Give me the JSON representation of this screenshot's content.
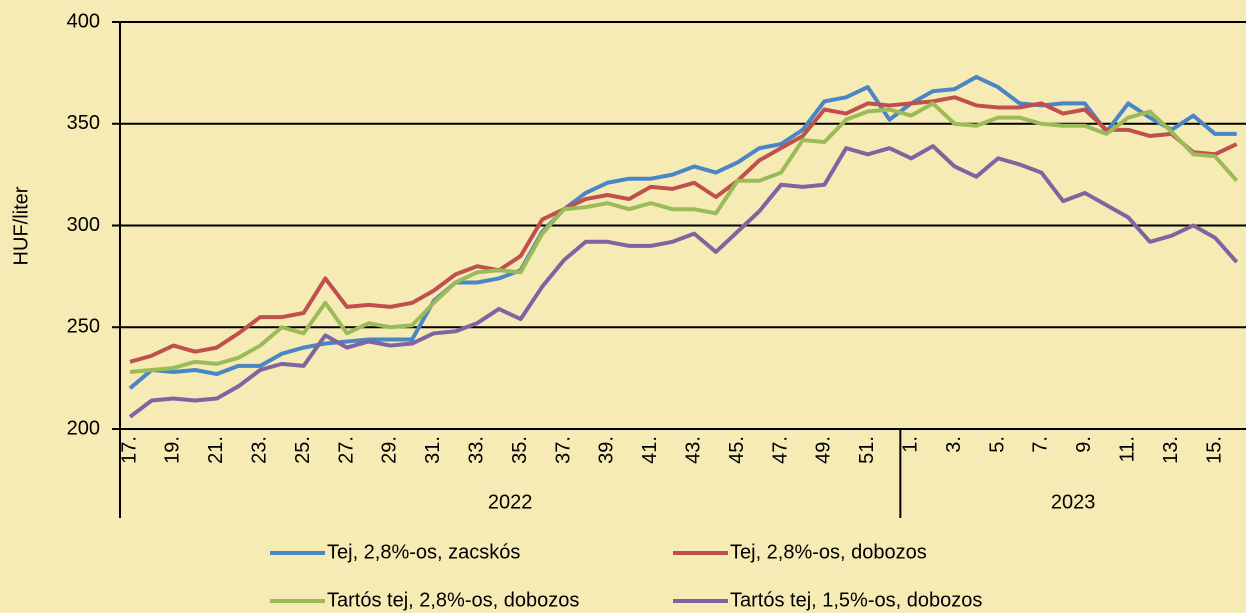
{
  "chart_data": {
    "type": "line",
    "y_label": "HUF/liter",
    "categories": [
      "17.",
      null,
      "19.",
      null,
      "21.",
      null,
      "23.",
      null,
      "25.",
      null,
      "27.",
      null,
      "29.",
      null,
      "31.",
      null,
      "33.",
      null,
      "35.",
      null,
      "37.",
      null,
      "39.",
      null,
      "41.",
      null,
      "43.",
      null,
      "45.",
      null,
      "47.",
      null,
      "49.",
      null,
      "51.",
      null,
      "1.",
      null,
      "3.",
      null,
      "5.",
      null,
      "7.",
      null,
      "9.",
      null,
      "11.",
      null,
      "13.",
      null,
      "15.",
      null
    ],
    "groups": [
      "2022",
      "2023"
    ],
    "ylim": [
      200,
      400
    ],
    "yticks": [
      200,
      250,
      300,
      350,
      400
    ],
    "grid": true,
    "series": [
      {
        "name": "Tej, 2,8%-os, zacskós",
        "color": "#4a86c5",
        "values": [
          220,
          229,
          228,
          229,
          227,
          231,
          231,
          237,
          240,
          242,
          243,
          244,
          244,
          244,
          263,
          272,
          272,
          274,
          278,
          297,
          308,
          316,
          321,
          323,
          323,
          325,
          329,
          326,
          331,
          338,
          340,
          347,
          361,
          363,
          368,
          352,
          360,
          366,
          367,
          373,
          368,
          360,
          359,
          360,
          360,
          346,
          360,
          353,
          347,
          354,
          345,
          345
        ]
      },
      {
        "name": "Tej, 2,8%-os, dobozos",
        "color": "#c0504d",
        "values": [
          233,
          236,
          241,
          238,
          240,
          247,
          255,
          255,
          257,
          274,
          260,
          261,
          260,
          262,
          268,
          276,
          280,
          278,
          285,
          303,
          308,
          313,
          315,
          313,
          319,
          318,
          321,
          314,
          322,
          332,
          338,
          344,
          357,
          355,
          360,
          359,
          360,
          361,
          363,
          359,
          358,
          358,
          360,
          355,
          357,
          347,
          347,
          344,
          345,
          336,
          335,
          340
        ]
      },
      {
        "name": "Tartós tej, 2,8%-os, dobozos",
        "color": "#9bbb59",
        "values": [
          228,
          229,
          230,
          233,
          232,
          235,
          241,
          250,
          247,
          262,
          247,
          252,
          250,
          251,
          262,
          272,
          277,
          278,
          277,
          296,
          308,
          309,
          311,
          308,
          311,
          308,
          308,
          306,
          322,
          322,
          326,
          342,
          341,
          352,
          356,
          357,
          354,
          360,
          350,
          349,
          353,
          353,
          350,
          349,
          349,
          345,
          353,
          356,
          346,
          335,
          334,
          322
        ]
      },
      {
        "name": "Tartós tej, 1,5%-os, dobozos",
        "color": "#8064a2",
        "values": [
          206,
          214,
          215,
          214,
          215,
          221,
          229,
          232,
          231,
          246,
          240,
          243,
          241,
          242,
          247,
          248,
          252,
          259,
          254,
          270,
          283,
          292,
          292,
          290,
          290,
          292,
          296,
          287,
          297,
          307,
          320,
          319,
          320,
          338,
          335,
          338,
          333,
          339,
          329,
          324,
          333,
          330,
          326,
          312,
          316,
          310,
          304,
          292,
          295,
          300,
          294,
          282
        ]
      }
    ]
  }
}
